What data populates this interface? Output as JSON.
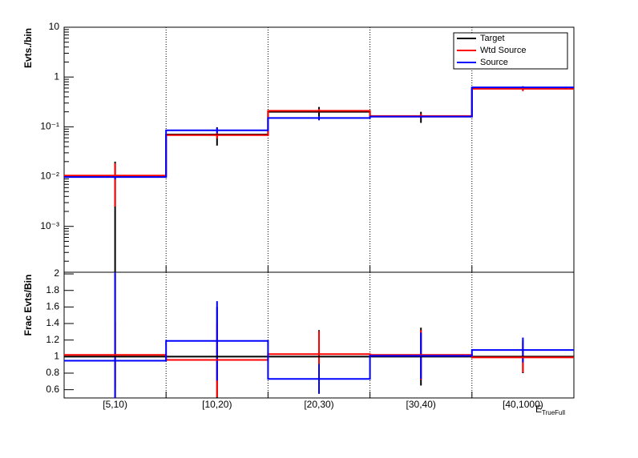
{
  "chart_data": [
    {
      "type": "step",
      "y_label": "Evts./bin",
      "log_y": true,
      "grid_x": true,
      "legend": "upper right",
      "ylim": [
        0.00012,
        10
      ],
      "yticks": [
        {
          "value": 0.001,
          "label": "10⁻³"
        },
        {
          "value": 0.01,
          "label": "10⁻²"
        },
        {
          "value": 0.1,
          "label": "10⁻¹"
        },
        1,
        10
      ],
      "series": [
        {
          "name": "Target",
          "color": "#000000",
          "values": [
            0.01,
            0.07,
            0.2,
            0.16,
            0.6
          ],
          "errors": [
            0.01,
            0.028,
            0.05,
            0.04,
            0.05
          ]
        },
        {
          "name": "Wtd Source",
          "color": "#ff0000",
          "values": [
            0.0105,
            0.068,
            0.21,
            0.165,
            0.58
          ],
          "errors": [
            0.008,
            0.01,
            0.02,
            0.015,
            0.06
          ]
        },
        {
          "name": "Source",
          "color": "#0000ff",
          "values": [
            0.0098,
            0.085,
            0.15,
            0.16,
            0.62
          ],
          "errors": [
            0.001,
            0.01,
            0.015,
            0.01,
            0.03
          ]
        }
      ]
    },
    {
      "type": "step",
      "y_label": "Frac Evts/Bin",
      "x_label": "E",
      "x_label_sub": "TrueFull",
      "grid_x": true,
      "categories": [
        "[5,10)",
        "[10,20)",
        "[20,30)",
        "[30,40)",
        "[40,1000)"
      ],
      "ylim": [
        0.5,
        2.02
      ],
      "yticks": [
        0.6,
        0.8,
        1,
        1.2,
        1.4,
        1.6,
        1.8,
        2
      ],
      "series": [
        {
          "name": "Target",
          "color": "#000000",
          "values": [
            1,
            1,
            1,
            1,
            1
          ],
          "errors": [
            1.0,
            0.6,
            0.32,
            0.35,
            0.2
          ]
        },
        {
          "name": "Wtd Source",
          "color": "#ff0000",
          "values": [
            1.02,
            0.96,
            1.03,
            1.02,
            0.99
          ],
          "errors": [
            0.4,
            0.45,
            0.28,
            0.3,
            0.18
          ]
        },
        {
          "name": "Source",
          "color": "#0000ff",
          "values": [
            0.95,
            1.19,
            0.73,
            1.01,
            1.08
          ],
          "errors": [
            1.1,
            0.48,
            0.18,
            0.28,
            0.15
          ]
        }
      ]
    }
  ]
}
